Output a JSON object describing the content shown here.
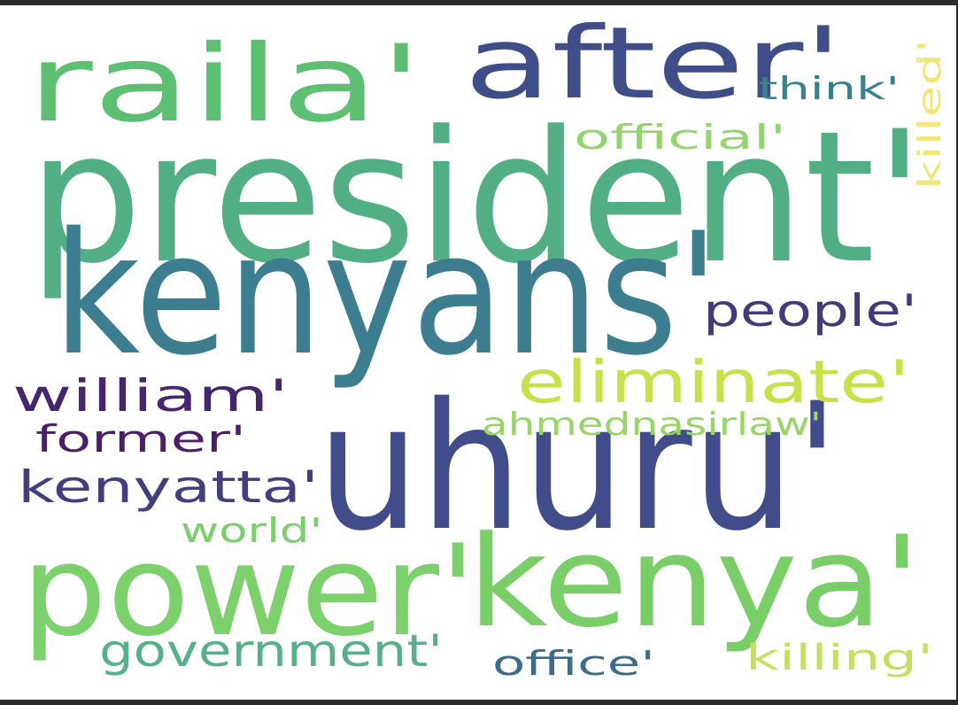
{
  "words": [
    {
      "text": "president'",
      "color": "#52ae84"
    },
    {
      "text": "kenyans'",
      "color": "#3c7d8f"
    },
    {
      "text": "uhuru'",
      "color": "#414c8a"
    },
    {
      "text": "power'",
      "color": "#7cd16c"
    },
    {
      "text": "kenya'",
      "color": "#7ace67"
    },
    {
      "text": "raila'",
      "color": "#5dbf72"
    },
    {
      "text": "after'",
      "color": "#3f4e88"
    },
    {
      "text": "eliminate'",
      "color": "#c9e04a"
    },
    {
      "text": "people'",
      "color": "#433b79"
    },
    {
      "text": "william'",
      "color": "#45266e"
    },
    {
      "text": "former'",
      "color": "#4b1e68"
    },
    {
      "text": "kenyatta'",
      "color": "#433f7f"
    },
    {
      "text": "government'",
      "color": "#56b08a"
    },
    {
      "text": "ahmednasirlaw'",
      "color": "#9ad567"
    },
    {
      "text": "think'",
      "color": "#3a808d"
    },
    {
      "text": "official'",
      "color": "#93d46d"
    },
    {
      "text": "killed'",
      "color": "#f2e57a"
    },
    {
      "text": "world'",
      "color": "#7ccd6e"
    },
    {
      "text": "office'",
      "color": "#3a6d8a"
    },
    {
      "text": "killing'",
      "color": "#c5e060"
    }
  ]
}
